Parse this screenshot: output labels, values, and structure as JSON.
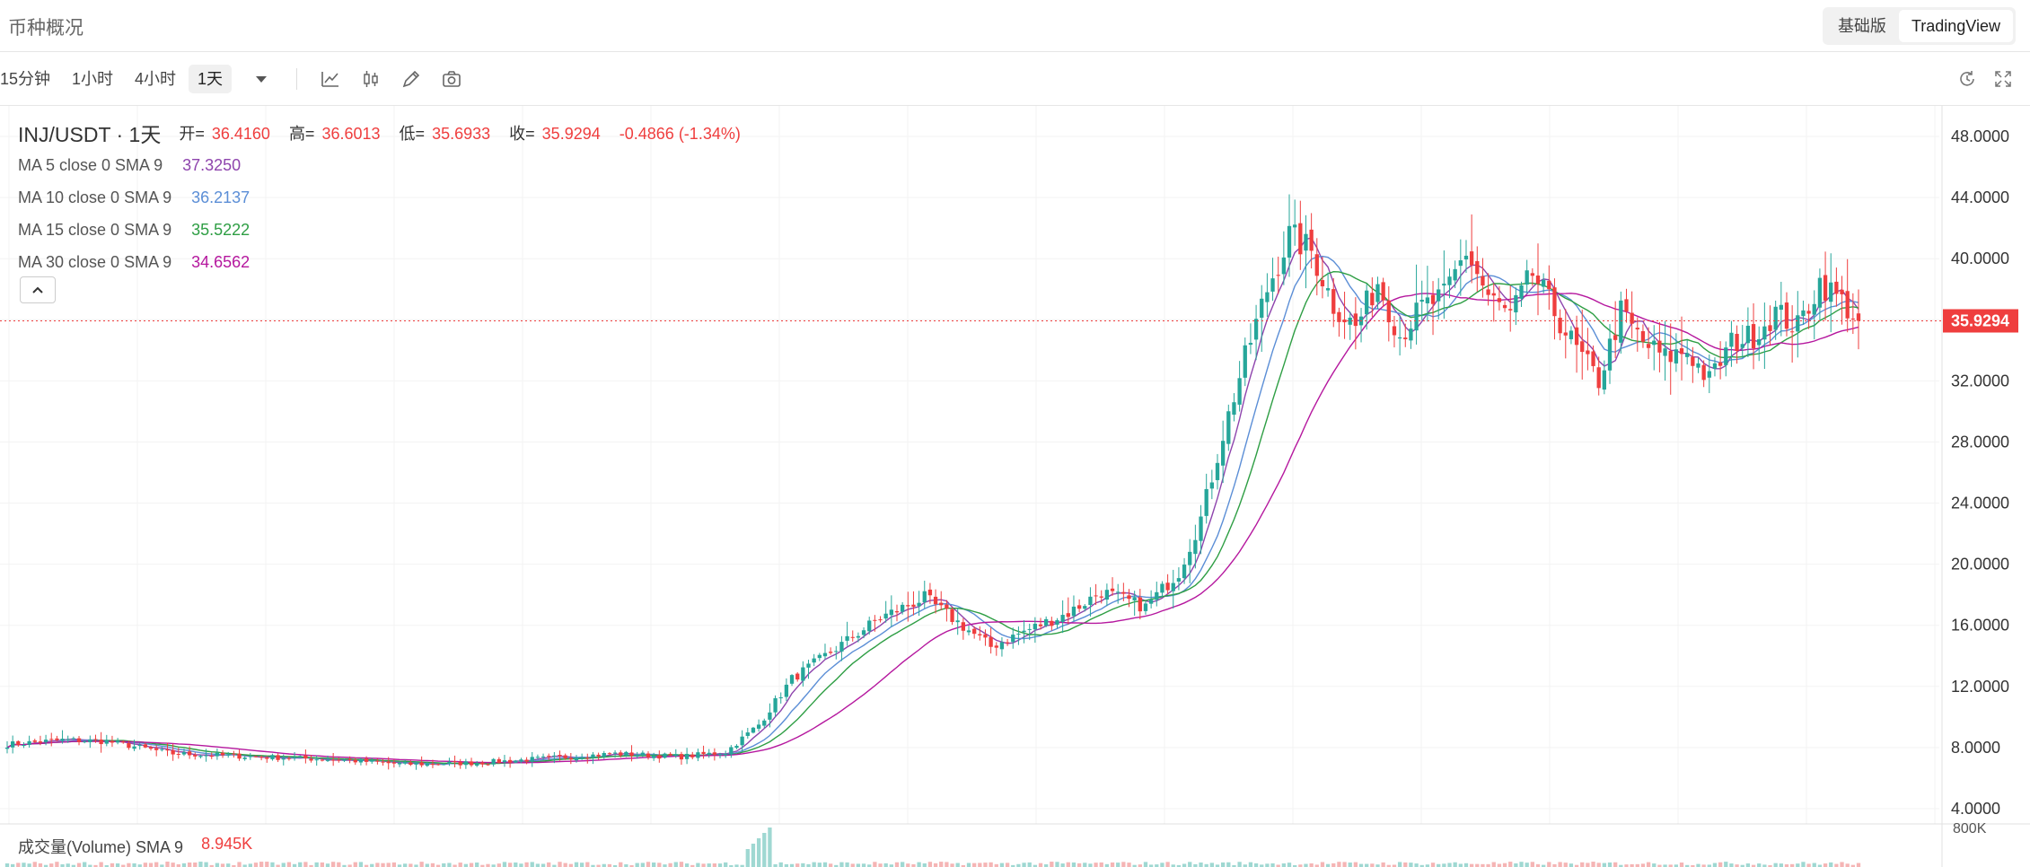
{
  "header": {
    "title": "币种概况",
    "views": [
      "基础版",
      "TradingView"
    ],
    "active_view": 1
  },
  "toolbar": {
    "timeframes": [
      "15分钟",
      "1小时",
      "4小时",
      "1天"
    ],
    "active_timeframe": 3,
    "tools": [
      "dropdown-icon",
      "indicator-icon",
      "candle-type-icon",
      "draw-icon",
      "camera-icon"
    ],
    "right_tools": [
      "replay-icon",
      "fullscreen-icon"
    ]
  },
  "legend": {
    "symbol": "INJ/USDT · 1天",
    "ohlc": [
      {
        "k": "开=",
        "v": "36.4160"
      },
      {
        "k": "高=",
        "v": "36.6013"
      },
      {
        "k": "低=",
        "v": "35.6933"
      },
      {
        "k": "收=",
        "v": "35.9294"
      },
      {
        "k": "",
        "v": "-0.4866 (-1.34%)"
      }
    ],
    "ma": [
      {
        "label": "MA 5 close 0 SMA 9",
        "value": "37.3250",
        "color": "#8e44ad"
      },
      {
        "label": "MA 10 close 0 SMA 9",
        "value": "36.2137",
        "color": "#5b8ed6"
      },
      {
        "label": "MA 15 close 0 SMA 9",
        "value": "35.5222",
        "color": "#2e9e44"
      },
      {
        "label": "MA 30 close 0 SMA 9",
        "value": "34.6562",
        "color": "#b5179e"
      }
    ]
  },
  "volume": {
    "label": "成交量(Volume) SMA 9",
    "value": "8.945K",
    "axis_label": "800K"
  },
  "price_axis": {
    "ticks": [
      "48.0000",
      "44.0000",
      "40.0000",
      "36.0000",
      "32.0000",
      "28.0000",
      "24.0000",
      "20.0000",
      "16.0000",
      "12.0000",
      "8.0000",
      "4.0000"
    ],
    "current_price": "35.9294"
  },
  "colors": {
    "up": "#26a69a",
    "down": "#ef3e3e",
    "current": "#ef3e3e"
  },
  "chart_data": {
    "type": "candlestick",
    "ylim": [
      3,
      50
    ],
    "current_price": 35.9294,
    "anchors": [
      [
        0,
        8.2
      ],
      [
        10,
        8.5
      ],
      [
        18,
        8.4
      ],
      [
        30,
        7.6
      ],
      [
        45,
        7.4
      ],
      [
        60,
        7.2
      ],
      [
        72,
        6.9
      ],
      [
        85,
        7.0
      ],
      [
        98,
        7.3
      ],
      [
        110,
        7.6
      ],
      [
        122,
        7.4
      ],
      [
        130,
        7.7
      ],
      [
        136,
        9.5
      ],
      [
        142,
        12.5
      ],
      [
        150,
        14.5
      ],
      [
        158,
        16.5
      ],
      [
        166,
        17.8
      ],
      [
        172,
        16.2
      ],
      [
        178,
        14.6
      ],
      [
        184,
        15.6
      ],
      [
        192,
        16.8
      ],
      [
        198,
        18.2
      ],
      [
        206,
        17.2
      ],
      [
        212,
        19.5
      ],
      [
        216,
        23.0
      ],
      [
        220,
        28.5
      ],
      [
        224,
        33.5
      ],
      [
        228,
        38.0
      ],
      [
        232,
        41.5
      ],
      [
        236,
        40.5
      ],
      [
        240,
        37.0
      ],
      [
        244,
        35.5
      ],
      [
        248,
        38.5
      ],
      [
        252,
        35.0
      ],
      [
        256,
        36.8
      ],
      [
        260,
        37.5
      ],
      [
        264,
        40.5
      ],
      [
        268,
        37.5
      ],
      [
        272,
        36.2
      ],
      [
        276,
        39.0
      ],
      [
        280,
        36.5
      ],
      [
        284,
        34.0
      ],
      [
        288,
        32.0
      ],
      [
        292,
        36.5
      ],
      [
        296,
        34.5
      ],
      [
        300,
        33.5
      ],
      [
        304,
        34.0
      ],
      [
        308,
        32.0
      ],
      [
        312,
        34.5
      ],
      [
        316,
        35.0
      ],
      [
        320,
        36.5
      ],
      [
        324,
        35.5
      ],
      [
        328,
        38.5
      ],
      [
        332,
        37.2
      ],
      [
        335,
        35.93
      ]
    ]
  }
}
